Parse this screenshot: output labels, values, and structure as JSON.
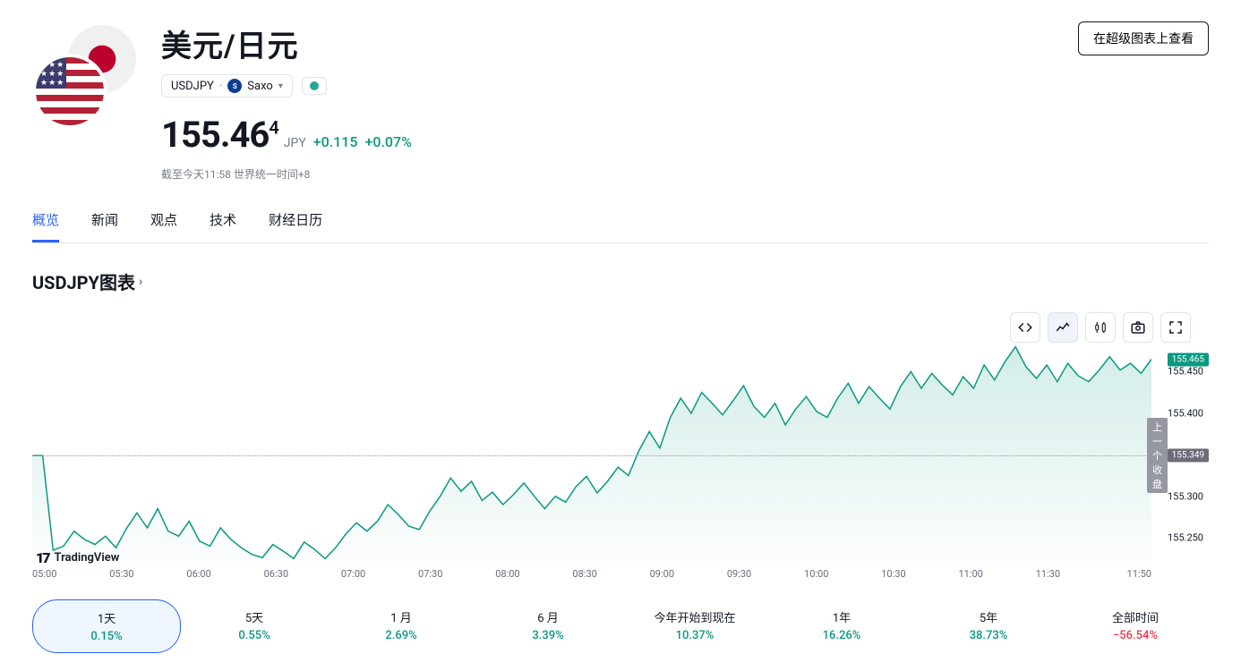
{
  "header": {
    "title": "美元/日元",
    "symbol": "USDJPY",
    "separator": "·",
    "broker": "Saxo",
    "super_chart_btn": "在超级图表上查看"
  },
  "quote": {
    "price_main": "155.46",
    "price_frac": "4",
    "currency": "JPY",
    "change_abs": "+0.115",
    "change_pct": "+0.07%",
    "timestamp": "截至今天11:58 世界统一时间+8"
  },
  "tabs": [
    {
      "label": "概览",
      "active": true
    },
    {
      "label": "新闻",
      "active": false
    },
    {
      "label": "观点",
      "active": false
    },
    {
      "label": "技术",
      "active": false
    },
    {
      "label": "财经日历",
      "active": false
    }
  ],
  "chart": {
    "title": "USDJPY图表",
    "logo": "TradingView",
    "type": "area",
    "line_color": "#089981",
    "fill_top": "rgba(8,153,129,0.18)",
    "fill_bottom": "rgba(8,153,129,0.01)",
    "y_min": 155.22,
    "y_max": 155.5,
    "prev_close": 155.349,
    "prev_close_label": "上一个收盘",
    "current_value_badge": "155.465",
    "y_ticks": [
      {
        "v": 155.45,
        "label": "155.450"
      },
      {
        "v": 155.4,
        "label": "155.400"
      },
      {
        "v": 155.349,
        "label": "155.349",
        "is_prev": true
      },
      {
        "v": 155.3,
        "label": "155.300"
      },
      {
        "v": 155.25,
        "label": "155.250"
      }
    ],
    "x_ticks": [
      "05:00",
      "05:30",
      "06:00",
      "06:30",
      "07:00",
      "07:30",
      "08:00",
      "08:30",
      "09:00",
      "09:30",
      "10:00",
      "10:30",
      "11:00",
      "11:30",
      "11:50"
    ],
    "series": [
      155.349,
      155.349,
      155.235,
      155.24,
      155.258,
      155.248,
      155.242,
      155.252,
      155.238,
      155.261,
      155.28,
      155.262,
      155.285,
      155.258,
      155.252,
      155.27,
      155.246,
      155.24,
      155.262,
      155.248,
      155.238,
      155.23,
      155.226,
      155.242,
      155.234,
      155.225,
      155.245,
      155.236,
      155.225,
      155.238,
      155.255,
      155.268,
      155.258,
      155.27,
      155.29,
      155.278,
      155.264,
      155.26,
      155.282,
      155.3,
      155.322,
      155.306,
      155.318,
      155.295,
      155.305,
      155.29,
      155.302,
      155.316,
      155.3,
      155.285,
      155.3,
      155.293,
      155.312,
      155.324,
      155.304,
      155.318,
      155.335,
      155.325,
      155.355,
      155.378,
      155.358,
      155.395,
      155.418,
      155.4,
      155.425,
      155.412,
      155.398,
      155.415,
      155.433,
      155.408,
      155.395,
      155.412,
      155.386,
      155.405,
      155.42,
      155.402,
      155.395,
      155.418,
      155.436,
      155.412,
      155.432,
      155.418,
      155.405,
      155.432,
      155.45,
      155.43,
      155.448,
      155.434,
      155.422,
      155.444,
      155.43,
      155.458,
      155.44,
      155.462,
      155.48,
      155.456,
      155.442,
      155.458,
      155.438,
      155.46,
      155.445,
      155.438,
      155.452,
      155.468,
      155.452,
      155.46,
      155.448,
      155.465
    ]
  },
  "periods": [
    {
      "label": "1天",
      "value": "0.15%",
      "dir": "pos",
      "active": true
    },
    {
      "label": "5天",
      "value": "0.55%",
      "dir": "pos",
      "active": false
    },
    {
      "label": "1 月",
      "value": "2.69%",
      "dir": "pos",
      "active": false
    },
    {
      "label": "6 月",
      "value": "3.39%",
      "dir": "pos",
      "active": false
    },
    {
      "label": "今年开始到现在",
      "value": "10.37%",
      "dir": "pos",
      "active": false
    },
    {
      "label": "1年",
      "value": "16.26%",
      "dir": "pos",
      "active": false
    },
    {
      "label": "5年",
      "value": "38.73%",
      "dir": "pos",
      "active": false
    },
    {
      "label": "全部时间",
      "value": "−56.54%",
      "dir": "neg",
      "active": false
    }
  ]
}
